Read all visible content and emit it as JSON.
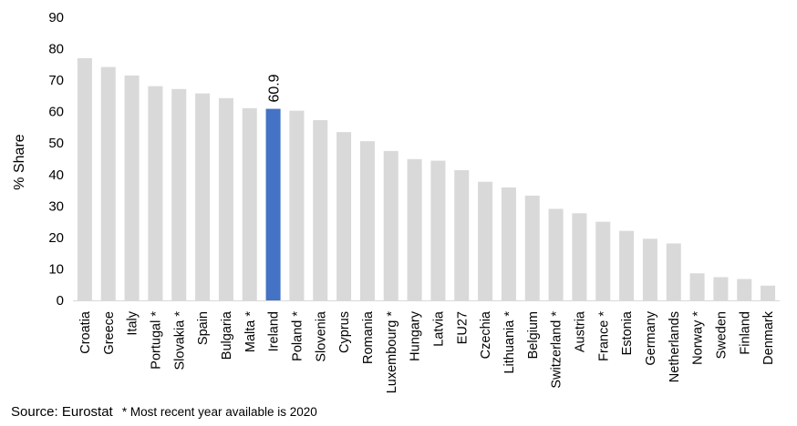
{
  "chart_data": {
    "type": "bar",
    "ylabel": "% Share",
    "xlabel": "",
    "ylim": [
      0,
      90
    ],
    "yticks": [
      0,
      10,
      20,
      30,
      40,
      50,
      60,
      70,
      80,
      90
    ],
    "grid": false,
    "categories": [
      "Croatia",
      "Greece",
      "Italy",
      "Portugal *",
      "Slovakia *",
      "Spain",
      "Bulgaria",
      "Malta *",
      "Ireland",
      "Poland *",
      "Slovenia",
      "Cyprus",
      "Romania",
      "Luxembourg *",
      "Hungary",
      "Latvia",
      "EU27",
      "Czechia",
      "Lithuania *",
      "Belgium",
      "Switzerland *",
      "Austria",
      "France *",
      "Estonia",
      "Germany",
      "Netherlands",
      "Norway *",
      "Sweden",
      "Finland",
      "Denmark"
    ],
    "values": [
      77.0,
      74.2,
      71.5,
      68.1,
      67.2,
      65.8,
      64.3,
      61.1,
      60.9,
      60.3,
      57.3,
      53.5,
      50.6,
      47.5,
      44.9,
      44.4,
      41.4,
      37.7,
      35.9,
      33.3,
      29.1,
      27.7,
      25.0,
      22.1,
      19.6,
      18.1,
      8.6,
      7.4,
      6.8,
      4.7
    ],
    "highlight": {
      "category": "Ireland",
      "data_label": "60.9",
      "color": "#4472c4"
    },
    "bar_color": "#d9d9d9"
  },
  "footer": {
    "source": "Source: Eurostat",
    "note": "* Most recent year available is 2020"
  }
}
